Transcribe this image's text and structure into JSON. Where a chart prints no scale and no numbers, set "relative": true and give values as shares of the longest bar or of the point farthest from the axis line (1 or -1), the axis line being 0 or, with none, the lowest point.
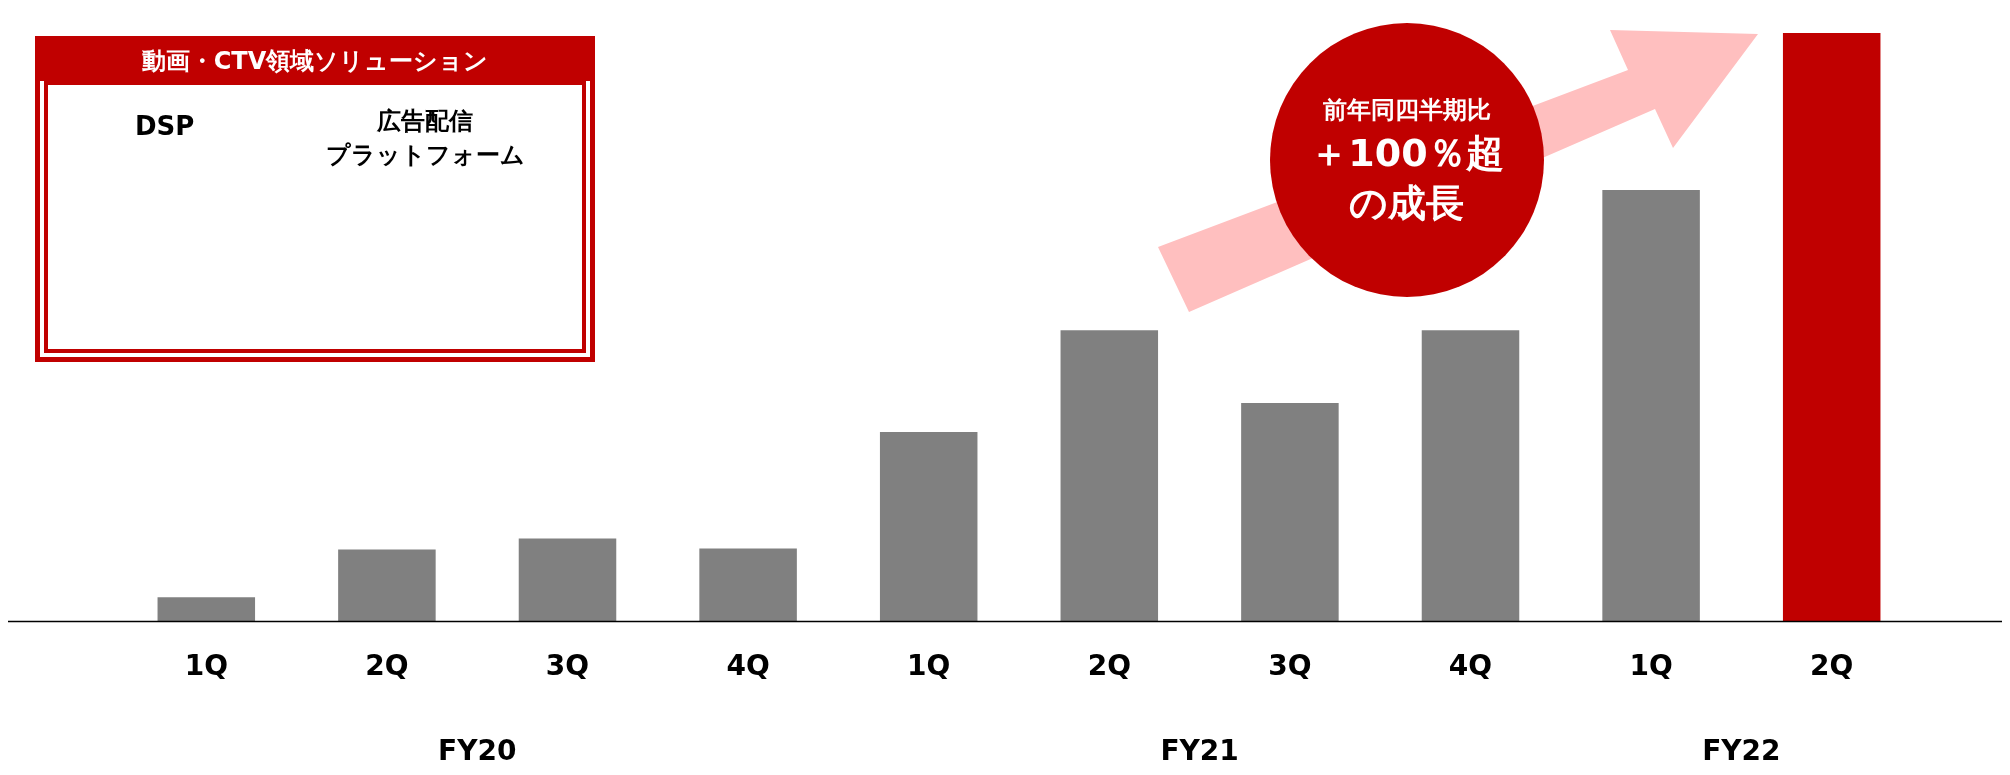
{
  "chart_data": {
    "type": "bar",
    "relative": true,
    "title": "動画・CTV領域ソリューション",
    "categories": [
      "1Q",
      "2Q",
      "3Q",
      "4Q",
      "1Q",
      "2Q",
      "3Q",
      "4Q",
      "1Q",
      "2Q"
    ],
    "values": [
      0.041,
      0.122,
      0.141,
      0.124,
      0.322,
      0.495,
      0.371,
      0.495,
      0.733,
      1
    ],
    "colors": [
      "#808080",
      "#808080",
      "#808080",
      "#808080",
      "#808080",
      "#808080",
      "#808080",
      "#808080",
      "#808080",
      "#c00000"
    ],
    "annotations": [
      "FY20",
      "FY21",
      "FY22",
      "前年同四半期比",
      "＋100％超",
      "の成長",
      "DSP",
      "広告配信",
      "プラットフォーム"
    ],
    "grid": false,
    "legend": false
  }
}
